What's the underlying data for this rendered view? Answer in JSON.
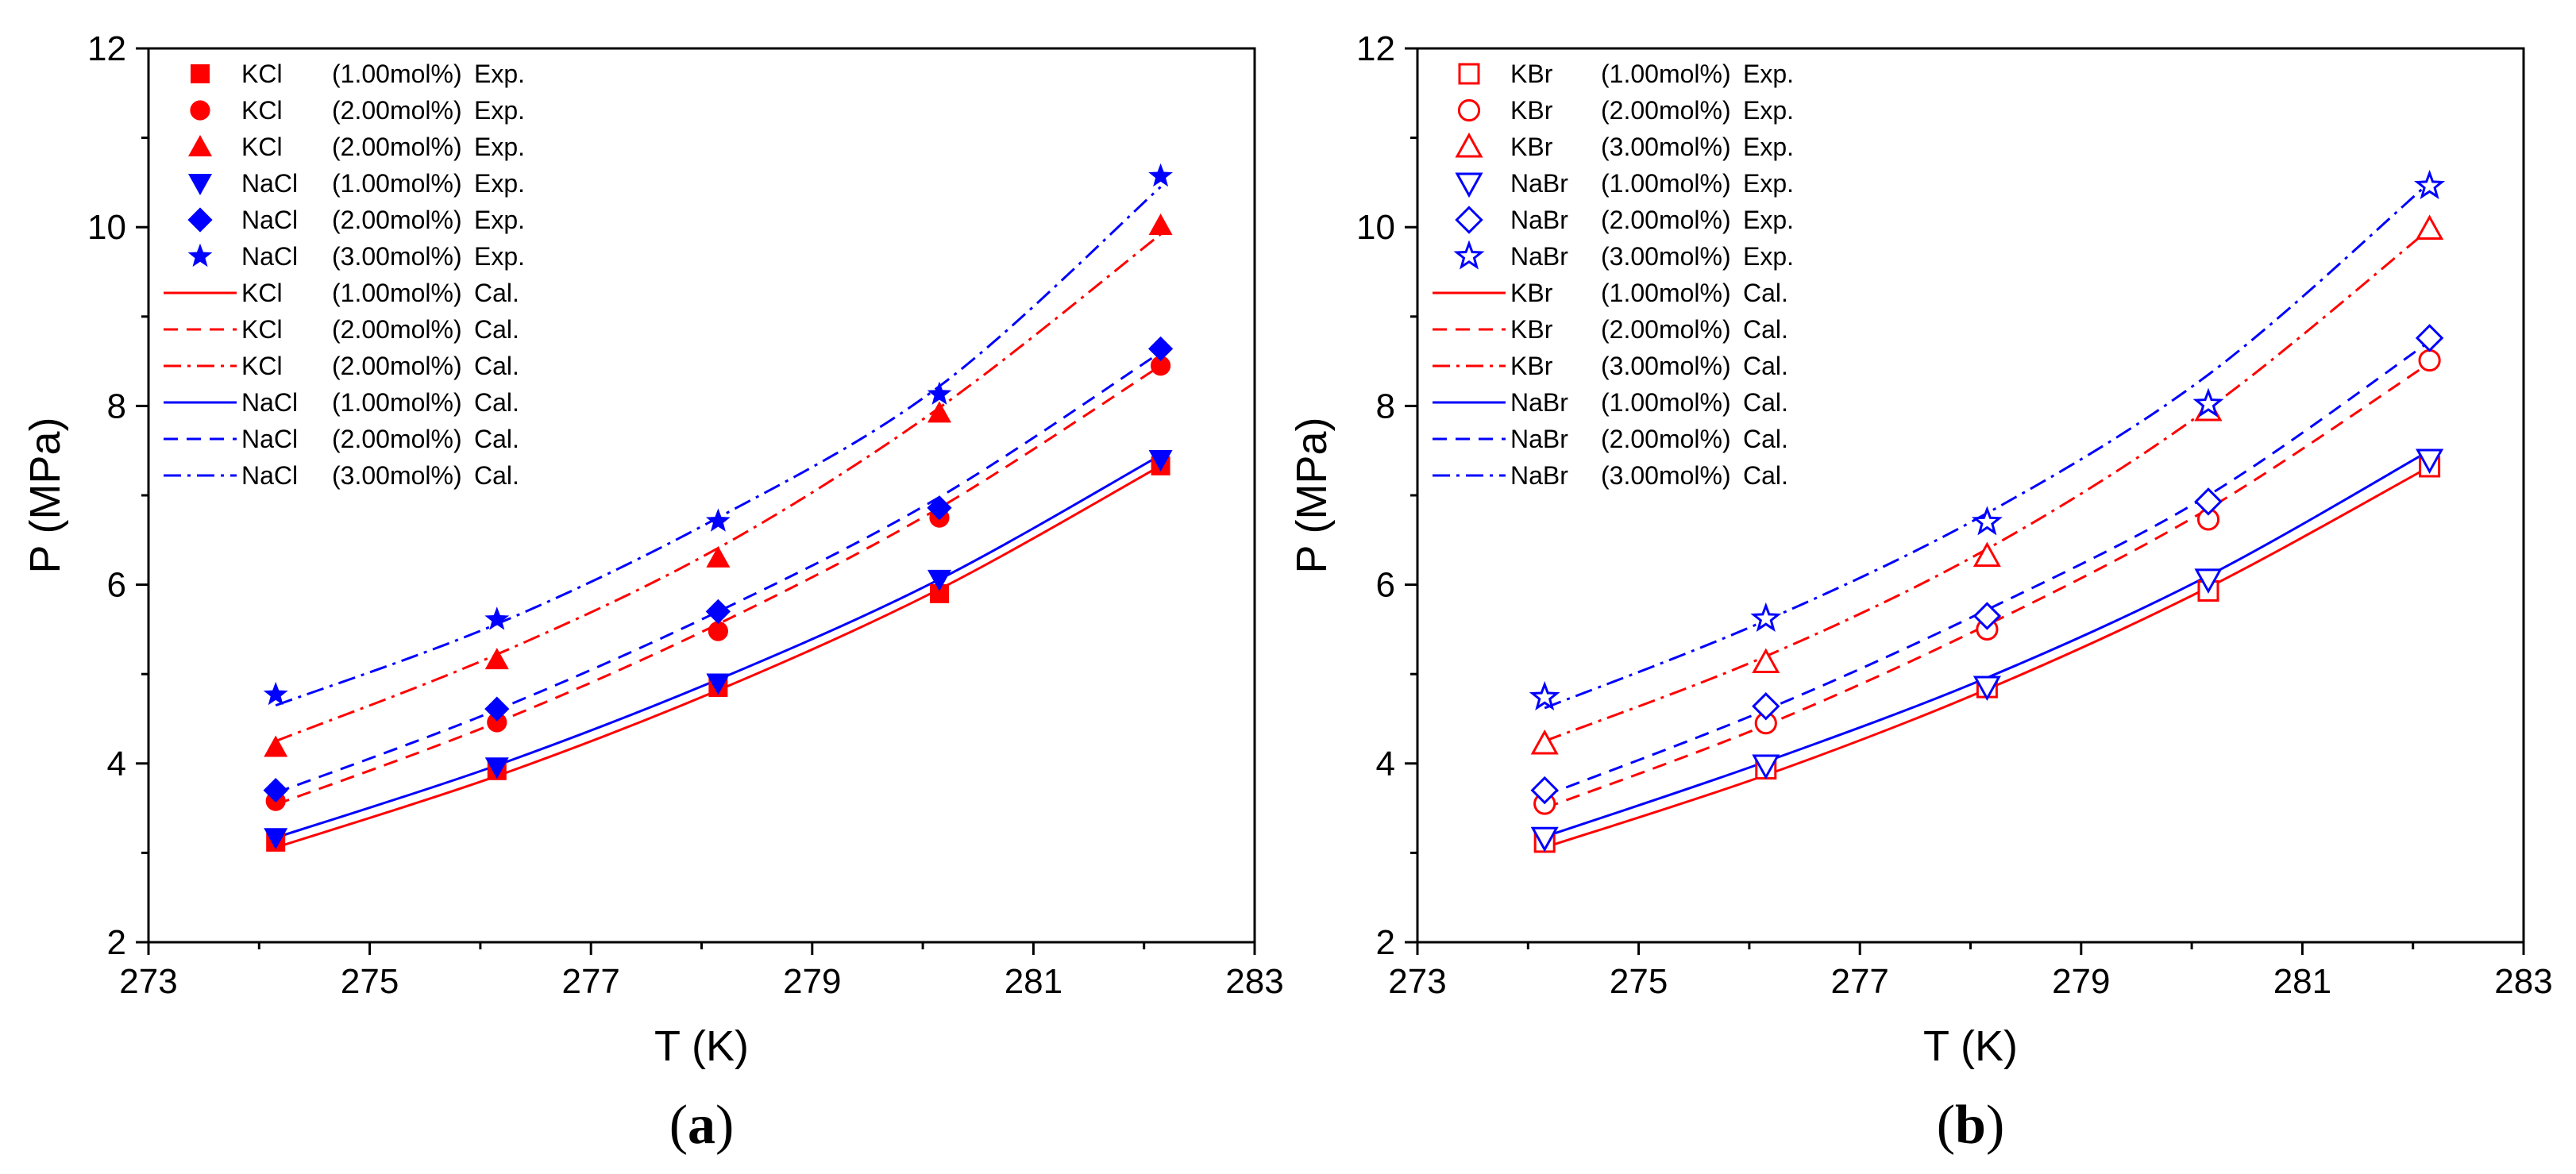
{
  "chart_data": [
    {
      "type": "scatter",
      "panel": "a",
      "panel_label_open": "(",
      "panel_label_letter": "a",
      "panel_label_close": ")",
      "xlabel": "T (K)",
      "ylabel": "P (MPa)",
      "xlim": [
        273,
        283
      ],
      "ylim": [
        2,
        12
      ],
      "xticks": [
        273,
        275,
        277,
        279,
        281,
        283
      ],
      "yticks": [
        2,
        4,
        6,
        8,
        10,
        12
      ],
      "legend_position": "top-left",
      "x": [
        274.15,
        276.15,
        278.15,
        280.15,
        282.15
      ],
      "experimental": [
        {
          "salt": "KCl",
          "conc": "(1.00mol%)",
          "tag": "Exp.",
          "marker": "square",
          "filled": true,
          "color": "#ff0000",
          "values": [
            3.12,
            3.92,
            4.85,
            5.9,
            7.33
          ]
        },
        {
          "salt": "KCl",
          "conc": "(2.00mol%)",
          "tag": "Exp.",
          "marker": "circle",
          "filled": true,
          "color": "#ff0000",
          "values": [
            3.58,
            4.46,
            5.48,
            6.75,
            8.45
          ]
        },
        {
          "salt": "KCl",
          "conc": "(2.00mol%)",
          "tag": "Exp.",
          "marker": "triangle-up",
          "filled": true,
          "color": "#ff0000",
          "values": [
            4.18,
            5.16,
            6.3,
            7.92,
            10.02
          ]
        },
        {
          "salt": "NaCl",
          "conc": "(1.00mol%)",
          "tag": "Exp.",
          "marker": "triangle-down",
          "filled": true,
          "color": "#0000ff",
          "values": [
            3.17,
            3.96,
            4.9,
            6.06,
            7.4
          ]
        },
        {
          "salt": "NaCl",
          "conc": "(2.00mol%)",
          "tag": "Exp.",
          "marker": "diamond",
          "filled": true,
          "color": "#0000ff",
          "values": [
            3.7,
            4.61,
            5.7,
            6.86,
            8.64
          ]
        },
        {
          "salt": "NaCl",
          "conc": "(3.00mol%)",
          "tag": "Exp.",
          "marker": "star",
          "filled": true,
          "color": "#0000ff",
          "values": [
            4.77,
            5.61,
            6.71,
            8.13,
            10.57
          ]
        }
      ],
      "calculated": [
        {
          "salt": "KCl",
          "conc": "(1.00mol%)",
          "tag": "Cal.",
          "dash": "solid",
          "color": "#ff0000",
          "values": [
            3.06,
            3.86,
            4.82,
            5.95,
            7.33
          ]
        },
        {
          "salt": "KCl",
          "conc": "(2.00mol%)",
          "tag": "Cal.",
          "dash": "dash",
          "color": "#ff0000",
          "values": [
            3.54,
            4.46,
            5.56,
            6.86,
            8.45
          ]
        },
        {
          "salt": "KCl",
          "conc": "(2.00mol%)",
          "tag": "Cal.",
          "dash": "dashdot",
          "color": "#ff0000",
          "values": [
            4.25,
            5.22,
            6.41,
            7.98,
            9.92
          ]
        },
        {
          "salt": "NaCl",
          "conc": "(1.00mol%)",
          "tag": "Cal.",
          "dash": "solid",
          "color": "#0000ff",
          "values": [
            3.17,
            3.98,
            4.94,
            6.06,
            7.45
          ]
        },
        {
          "salt": "NaCl",
          "conc": "(2.00mol%)",
          "tag": "Cal.",
          "dash": "dash",
          "color": "#0000ff",
          "values": [
            3.67,
            4.6,
            5.7,
            6.98,
            8.6
          ]
        },
        {
          "salt": "NaCl",
          "conc": "(3.00mol%)",
          "tag": "Cal.",
          "dash": "dashdot",
          "color": "#0000ff",
          "values": [
            4.65,
            5.56,
            6.75,
            8.22,
            10.45
          ]
        }
      ]
    },
    {
      "type": "scatter",
      "panel": "b",
      "panel_label_open": "(",
      "panel_label_letter": "b",
      "panel_label_close": ")",
      "xlabel": "T (K)",
      "ylabel": "P (MPa)",
      "xlim": [
        273,
        283
      ],
      "ylim": [
        2,
        12
      ],
      "xticks": [
        273,
        275,
        277,
        279,
        281,
        283
      ],
      "yticks": [
        2,
        4,
        6,
        8,
        10,
        12
      ],
      "legend_position": "top-left",
      "x": [
        274.15,
        276.15,
        278.15,
        280.15,
        282.15
      ],
      "experimental": [
        {
          "salt": "KBr",
          "conc": "(1.00mol%)",
          "tag": "Exp.",
          "marker": "square",
          "filled": false,
          "color": "#ff0000",
          "values": [
            3.12,
            3.94,
            4.85,
            5.93,
            7.32
          ]
        },
        {
          "salt": "KBr",
          "conc": "(2.00mol%)",
          "tag": "Exp.",
          "marker": "circle",
          "filled": false,
          "color": "#ff0000",
          "values": [
            3.55,
            4.45,
            5.5,
            6.73,
            8.51
          ]
        },
        {
          "salt": "KBr",
          "conc": "(3.00mol%)",
          "tag": "Exp.",
          "marker": "triangle-up",
          "filled": false,
          "color": "#ff0000",
          "values": [
            4.22,
            5.13,
            6.32,
            7.95,
            9.98
          ]
        },
        {
          "salt": "NaBr",
          "conc": "(1.00mol%)",
          "tag": "Exp.",
          "marker": "triangle-down",
          "filled": false,
          "color": "#0000ff",
          "values": [
            3.17,
            3.98,
            4.86,
            6.06,
            7.4
          ]
        },
        {
          "salt": "NaBr",
          "conc": "(2.00mol%)",
          "tag": "Exp.",
          "marker": "diamond",
          "filled": false,
          "color": "#0000ff",
          "values": [
            3.7,
            4.64,
            5.65,
            6.93,
            8.76
          ]
        },
        {
          "salt": "NaBr",
          "conc": "(3.00mol%)",
          "tag": "Exp.",
          "marker": "star",
          "filled": false,
          "color": "#0000ff",
          "values": [
            4.74,
            5.62,
            6.7,
            8.02,
            10.46
          ]
        }
      ],
      "calculated": [
        {
          "salt": "KBr",
          "conc": "(1.00mol%)",
          "tag": "Cal.",
          "dash": "solid",
          "color": "#ff0000",
          "values": [
            3.06,
            3.87,
            4.83,
            5.97,
            7.32
          ]
        },
        {
          "salt": "KBr",
          "conc": "(2.00mol%)",
          "tag": "Cal.",
          "dash": "dash",
          "color": "#ff0000",
          "values": [
            3.5,
            4.43,
            5.55,
            6.85,
            8.48
          ]
        },
        {
          "salt": "KBr",
          "conc": "(3.00mol%)",
          "tag": "Cal.",
          "dash": "dashdot",
          "color": "#ff0000",
          "values": [
            4.25,
            5.2,
            6.4,
            7.97,
            9.98
          ]
        },
        {
          "salt": "NaBr",
          "conc": "(1.00mol%)",
          "tag": "Cal.",
          "dash": "solid",
          "color": "#0000ff",
          "values": [
            3.18,
            4.02,
            4.96,
            6.1,
            7.5
          ]
        },
        {
          "salt": "NaBr",
          "conc": "(2.00mol%)",
          "tag": "Cal.",
          "dash": "dash",
          "color": "#0000ff",
          "values": [
            3.64,
            4.6,
            5.72,
            7.0,
            8.72
          ]
        },
        {
          "salt": "NaBr",
          "conc": "(3.00mol%)",
          "tag": "Cal.",
          "dash": "dashdot",
          "color": "#0000ff",
          "values": [
            4.62,
            5.6,
            6.8,
            8.35,
            10.5
          ]
        }
      ]
    }
  ]
}
